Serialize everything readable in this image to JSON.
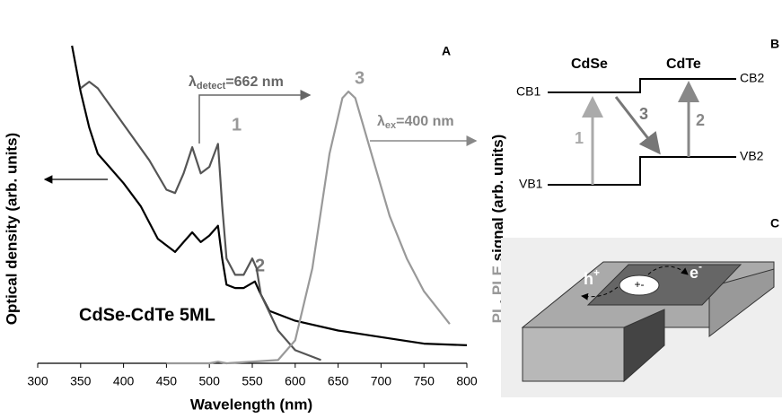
{
  "chart_data": {
    "type": "line",
    "panel_label": "A",
    "sample_label": "CdSe-CdTe 5ML",
    "x_label": "Wavelength (nm)",
    "y_label": "Optical density (arb. units)",
    "y2_label_parts": [
      "PL",
      ", ",
      "PLE",
      " signal (arb. units)"
    ],
    "detect_label": [
      "λ",
      "detect",
      "=662 nm"
    ],
    "ex_label": [
      "λ",
      "ex",
      "=400 nm"
    ],
    "peak_labels": [
      "1",
      "2",
      "3"
    ],
    "xlim": [
      300,
      800
    ],
    "xticks": [
      300,
      350,
      400,
      450,
      500,
      550,
      600,
      650,
      700,
      750,
      800
    ],
    "ylim": [
      0,
      100
    ],
    "series": [
      {
        "color": "#000000",
        "x": [
          340,
          350,
          360,
          370,
          400,
          420,
          440,
          460,
          470,
          480,
          490,
          500,
          510,
          515,
          520,
          530,
          540,
          553,
          560,
          570,
          600,
          650,
          700,
          750,
          800
        ],
        "values": [
          97,
          83,
          72,
          64,
          55,
          48,
          38,
          34,
          37,
          40,
          37,
          39,
          42,
          32,
          24,
          23,
          23,
          25,
          21,
          16,
          13,
          10,
          8,
          6,
          5.5
        ]
      },
      {
        "color": "#555555",
        "x": [
          350,
          360,
          370,
          400,
          430,
          450,
          460,
          470,
          480,
          490,
          500,
          510,
          515,
          520,
          530,
          540,
          550,
          555,
          560,
          580,
          600,
          630
        ],
        "values": [
          84,
          86,
          84,
          73,
          62,
          53,
          52,
          58,
          66,
          58,
          60,
          67,
          48,
          32,
          27,
          27,
          32,
          29,
          21,
          10,
          4,
          1
        ]
      },
      {
        "color": "#999999",
        "x": [
          450,
          500,
          510,
          520,
          580,
          600,
          620,
          640,
          655,
          662,
          670,
          690,
          710,
          730,
          750,
          780
        ],
        "values": [
          0,
          0,
          0.5,
          0,
          1,
          7,
          29,
          64,
          81,
          83,
          81,
          63,
          45,
          32,
          22,
          12
        ]
      }
    ]
  },
  "diagram_b": {
    "panel_label": "B",
    "materials": [
      "CdSe",
      "CdTe"
    ],
    "levels": [
      "CB1",
      "CB2",
      "VB1",
      "VB2"
    ],
    "transitions": [
      "1",
      "3",
      "2"
    ]
  },
  "diagram_c": {
    "panel_label": "C",
    "hole": "h",
    "hole_sup": "+",
    "electron": "e",
    "electron_sup": "-",
    "exciton": "+-"
  }
}
